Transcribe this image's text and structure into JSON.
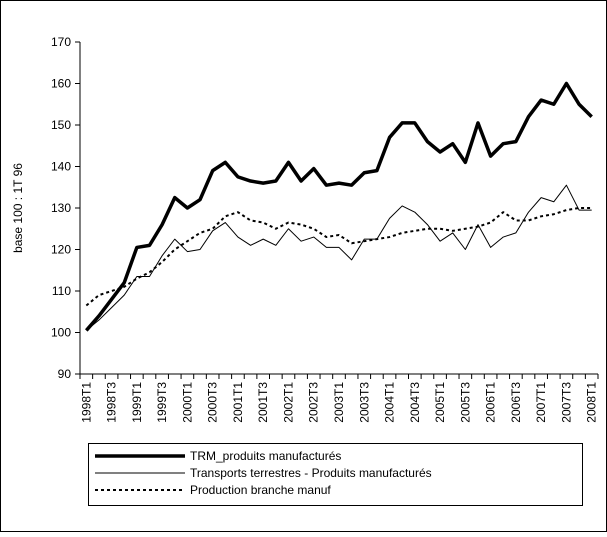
{
  "chart_data": {
    "type": "line",
    "y_label": "base 100 : 1T 96",
    "categories": [
      "1998T1",
      null,
      "1998T3",
      null,
      "1999T1",
      null,
      "1999T3",
      null,
      "2000T1",
      null,
      "2000T3",
      null,
      "2001T1",
      null,
      "2001T3",
      null,
      "2002T1",
      null,
      "2002T3",
      null,
      "2003T1",
      null,
      "2003T3",
      null,
      "2004T1",
      null,
      "2004T3",
      null,
      "2005T1",
      null,
      "2005T3",
      null,
      "2006T1",
      null,
      "2006T3",
      null,
      "2007T1",
      null,
      "2007T3",
      null,
      "2008T1"
    ],
    "series": [
      {
        "name": "TRM_produits manufacturés",
        "color": "#000000",
        "style": "thick",
        "values": [
          100.5,
          104,
          108,
          112,
          120.5,
          121,
          126,
          132.5,
          130,
          132,
          139,
          141,
          137.5,
          136.5,
          136,
          136.5,
          141,
          136.5,
          139.5,
          135.5,
          136,
          135.5,
          138.5,
          139,
          147,
          150.5,
          150.5,
          146,
          143.5,
          145.5,
          141,
          150.5,
          142.5,
          145.5,
          146,
          152,
          156,
          155,
          160,
          155,
          152
        ]
      },
      {
        "name": "Transports terrestres - Produits manufacturés",
        "color": "#000000",
        "style": "thin",
        "values": [
          100.5,
          103,
          106,
          109,
          113.5,
          113.5,
          118.5,
          122.5,
          119.5,
          120,
          124.5,
          126.5,
          123,
          121,
          122.5,
          121,
          125,
          122,
          123,
          120.5,
          120.5,
          117.5,
          122.5,
          122.5,
          127.5,
          130.5,
          129,
          126,
          122,
          124,
          120,
          126,
          120.5,
          123,
          124,
          129,
          132.5,
          131.5,
          135.5,
          129.5,
          129.5
        ]
      },
      {
        "name": "Production branche manuf",
        "color": "#000000",
        "style": "dotted",
        "values": [
          106.5,
          109,
          110,
          111,
          113,
          114.5,
          117,
          120,
          122,
          124,
          125,
          128,
          129,
          127,
          126.5,
          125,
          126.5,
          126,
          125,
          123,
          123.5,
          121.5,
          122,
          122.5,
          123,
          124,
          124.5,
          125,
          125,
          124.5,
          125,
          125.5,
          126.5,
          129,
          127,
          127,
          128,
          128.5,
          129.5,
          130,
          130
        ]
      }
    ],
    "ylim": [
      90,
      170
    ],
    "yticks": [
      90,
      100,
      110,
      120,
      130,
      140,
      150,
      160,
      170
    ],
    "grid": false,
    "legend": "bottom"
  }
}
